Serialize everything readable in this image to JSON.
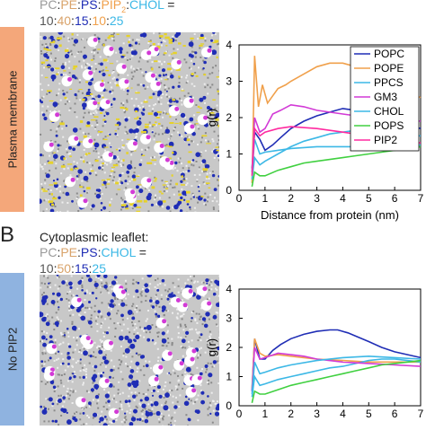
{
  "colors": {
    "PC": "#9a9a9a",
    "PE": "#d9a36a",
    "PS": "#1f2db5",
    "PIP2": "#f0a04b",
    "CHOL": "#3cb8e6",
    "POPC": "#1f2db5",
    "POPE": "#f0a04b",
    "PPCS": "#3cb8e6",
    "GM3": "#d23ad6",
    "POPS": "#40d040",
    "PIP2_line": "#ff2aa0",
    "tabA": "#f4a77a",
    "tabB": "#8fb3e0"
  },
  "panel_a": {
    "composition_top": {
      "PC": "PC",
      ":1": ":",
      "PE": "PE",
      ":2": ":",
      "PS": "PS",
      ":3": ":",
      "PIP": "PIP",
      "sub": "2",
      ":4": ":",
      "CHOL": "CHOL",
      "eq": "="
    },
    "ratios": {
      "r1": "10",
      ":1": ":",
      "r2": "40",
      ":2": ":",
      "r3": "15",
      ":3": ":",
      "r4": "10",
      ":4": ":",
      "r5": "25"
    },
    "side_label": "Plasma membrane"
  },
  "panel_b": {
    "letter": "B",
    "caption": "Cytoplasmic leaflet:",
    "composition_top": {
      "PC": "PC",
      ":1": ":",
      "PE": "PE",
      ":2": ":",
      "PS": "PS",
      ":3": ":",
      "CHOL": "CHOL",
      "eq": "="
    },
    "ratios": {
      "r1": "10",
      ":1": ":",
      "r2": "50",
      ":2": ":",
      "r3": "15",
      ":3": ":",
      "r4": "25"
    },
    "side_label": "No PIP2"
  },
  "chart_data": [
    {
      "type": "line",
      "xlabel": "Distance from protein (nm)",
      "ylabel": "g(r)",
      "xlim": [
        0,
        7
      ],
      "ylim": [
        0,
        4
      ],
      "xticks": [
        "0",
        "1",
        "2",
        "3",
        "4",
        "5",
        "6",
        "7"
      ],
      "yticks": [
        "0",
        "1",
        "2",
        "3",
        "4"
      ],
      "legend": [
        "POPC",
        "POPE",
        "PPCS",
        "GM3",
        "CHOL",
        "POPS",
        "PIP2"
      ],
      "series": [
        {
          "name": "POPC",
          "x": [
            0.5,
            0.6,
            0.8,
            1.0,
            1.3,
            1.6,
            2.0,
            2.5,
            3.0,
            3.5,
            4.0,
            4.5,
            5.0,
            5.5,
            6.0,
            6.5,
            7.0
          ],
          "y": [
            0.6,
            1.6,
            1.4,
            1.1,
            1.25,
            1.45,
            1.7,
            1.9,
            2.05,
            2.15,
            2.25,
            2.2,
            2.1,
            2.0,
            1.9,
            1.8,
            1.7
          ]
        },
        {
          "name": "POPE",
          "x": [
            0.5,
            0.6,
            0.75,
            0.9,
            1.1,
            1.3,
            1.5,
            1.8,
            2.0,
            2.5,
            3.0,
            3.5,
            4.0,
            4.5,
            5.0,
            5.5,
            6.0,
            6.5,
            7.0
          ],
          "y": [
            0.2,
            3.7,
            2.3,
            2.9,
            2.4,
            2.6,
            2.8,
            2.9,
            3.0,
            3.2,
            3.4,
            3.5,
            3.5,
            3.4,
            3.3,
            3.1,
            2.9,
            2.7,
            2.55
          ]
        },
        {
          "name": "PPCS",
          "x": [
            0.5,
            0.6,
            0.8,
            1.0,
            1.5,
            2.0,
            2.5,
            3.0,
            3.5,
            4.0,
            4.5,
            5.0,
            5.5,
            6.0,
            6.5,
            7.0
          ],
          "y": [
            0.3,
            0.9,
            0.7,
            0.8,
            1.0,
            1.2,
            1.35,
            1.45,
            1.55,
            1.6,
            1.65,
            1.6,
            1.6,
            1.55,
            1.5,
            1.5
          ]
        },
        {
          "name": "GM3",
          "x": [
            0.5,
            0.6,
            0.8,
            1.0,
            1.3,
            1.6,
            2.0,
            2.5,
            3.0,
            4.0,
            5.0,
            6.0,
            7.0
          ],
          "y": [
            0.5,
            2.0,
            1.6,
            1.7,
            2.1,
            2.2,
            2.35,
            2.3,
            2.2,
            2.1,
            2.0,
            1.95,
            1.9
          ]
        },
        {
          "name": "CHOL",
          "x": [
            0.5,
            0.6,
            0.8,
            1.0,
            1.5,
            2.0,
            3.0,
            4.0,
            5.0,
            6.0,
            7.0
          ],
          "y": [
            0.5,
            1.4,
            1.0,
            1.05,
            1.1,
            1.15,
            1.2,
            1.2,
            1.2,
            1.2,
            1.25
          ]
        },
        {
          "name": "POPS",
          "x": [
            0.5,
            0.6,
            0.8,
            1.0,
            1.5,
            2.0,
            2.5,
            3.0,
            3.5,
            4.0,
            4.5,
            5.0,
            5.5,
            6.0,
            6.5,
            7.0
          ],
          "y": [
            0.1,
            0.5,
            0.4,
            0.4,
            0.55,
            0.65,
            0.75,
            0.8,
            0.85,
            0.9,
            0.95,
            1.0,
            1.05,
            1.1,
            1.15,
            1.2
          ]
        },
        {
          "name": "PIP2",
          "x": [
            0.5,
            0.6,
            0.8,
            1.0,
            1.5,
            2.0,
            3.0,
            4.0,
            5.0,
            6.0,
            7.0
          ],
          "y": [
            0.4,
            1.7,
            1.5,
            1.6,
            1.7,
            1.75,
            1.7,
            1.6,
            1.5,
            1.4,
            1.3
          ]
        }
      ]
    },
    {
      "type": "line",
      "xlabel": "",
      "ylabel": "g(r)",
      "xlim": [
        0,
        7
      ],
      "ylim": [
        0,
        4
      ],
      "xticks": [
        "0",
        "1",
        "2",
        "3",
        "4",
        "5",
        "6",
        "7"
      ],
      "yticks": [
        "0",
        "1",
        "2",
        "3",
        "4"
      ],
      "series": [
        {
          "name": "POPC",
          "x": [
            0.5,
            0.6,
            0.8,
            1.0,
            1.3,
            1.6,
            2.0,
            2.5,
            3.0,
            3.5,
            3.8,
            4.2,
            4.6,
            5.0,
            5.5,
            6.0,
            6.5,
            7.0
          ],
          "y": [
            0.5,
            2.3,
            1.6,
            1.6,
            1.9,
            2.1,
            2.3,
            2.45,
            2.55,
            2.6,
            2.6,
            2.5,
            2.35,
            2.2,
            2.0,
            1.85,
            1.75,
            1.65
          ]
        },
        {
          "name": "POPE",
          "x": [
            0.5,
            0.6,
            0.8,
            1.0,
            1.5,
            2.0,
            2.5,
            3.0,
            4.0,
            5.0,
            6.0,
            7.0
          ],
          "y": [
            0.6,
            2.3,
            1.8,
            1.7,
            1.75,
            1.7,
            1.65,
            1.6,
            1.55,
            1.5,
            1.5,
            1.5
          ]
        },
        {
          "name": "PPCS",
          "x": [
            0.5,
            0.6,
            0.8,
            1.0,
            1.5,
            2.0,
            2.5,
            3.0,
            3.5,
            4.0,
            4.5,
            5.0,
            5.5,
            6.0,
            6.5,
            7.0
          ],
          "y": [
            0.3,
            1.0,
            0.7,
            0.75,
            0.9,
            1.0,
            1.1,
            1.2,
            1.3,
            1.35,
            1.45,
            1.55,
            1.6,
            1.6,
            1.55,
            1.5
          ]
        },
        {
          "name": "GM3",
          "x": [
            0.5,
            0.6,
            0.8,
            1.0,
            1.5,
            2.0,
            2.5,
            3.0,
            4.0,
            5.0,
            6.0,
            7.0
          ],
          "y": [
            0.5,
            2.0,
            1.6,
            1.65,
            1.8,
            1.75,
            1.7,
            1.6,
            1.5,
            1.45,
            1.4,
            1.35
          ]
        },
        {
          "name": "CHOL",
          "x": [
            0.5,
            0.6,
            0.8,
            1.0,
            1.5,
            2.0,
            3.0,
            4.0,
            5.0,
            6.0,
            7.0
          ],
          "y": [
            0.4,
            1.5,
            1.1,
            1.15,
            1.3,
            1.4,
            1.55,
            1.65,
            1.7,
            1.65,
            1.6
          ]
        },
        {
          "name": "POPS",
          "x": [
            0.5,
            0.6,
            0.8,
            1.0,
            1.5,
            2.0,
            2.5,
            3.0,
            3.5,
            4.0,
            4.5,
            5.0,
            5.5,
            6.0,
            6.5,
            7.0
          ],
          "y": [
            0.1,
            0.5,
            0.4,
            0.4,
            0.55,
            0.7,
            0.8,
            0.9,
            1.0,
            1.1,
            1.2,
            1.3,
            1.4,
            1.45,
            1.5,
            1.55
          ]
        }
      ]
    }
  ]
}
